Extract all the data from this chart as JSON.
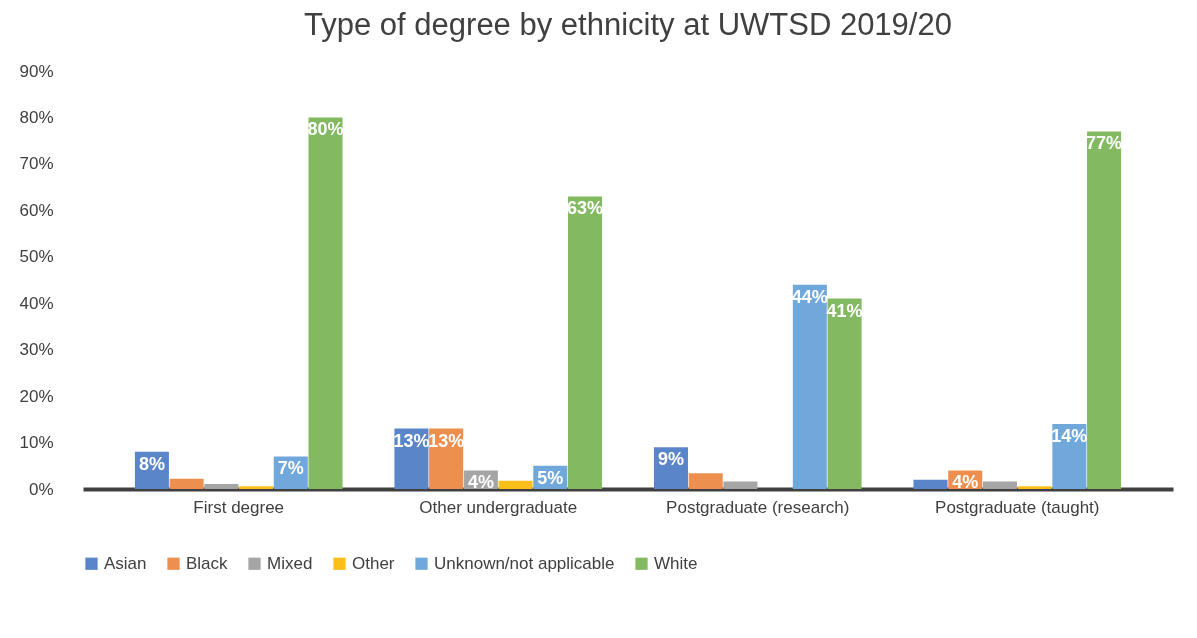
{
  "chart_data": {
    "type": "bar",
    "title": "Type of degree by ethnicity at UWTSD 2019/20",
    "categories": [
      "First degree",
      "Other undergraduate",
      "Postgraduate (research)",
      "Postgraduate (taught)"
    ],
    "series": [
      {
        "name": "Asian",
        "color": "#5b85c9",
        "values": [
          8,
          13,
          9,
          2.0
        ],
        "value_labels": [
          "8%",
          "13%",
          "9%",
          null
        ]
      },
      {
        "name": "Black",
        "color": "#ed8f4f",
        "values": [
          2.2,
          13,
          3.4,
          4
        ],
        "value_labels": [
          null,
          "13%",
          null,
          "4%"
        ]
      },
      {
        "name": "Mixed",
        "color": "#a5a5a5",
        "values": [
          1.1,
          4,
          1.6,
          1.6
        ],
        "value_labels": [
          null,
          "4%",
          null,
          null
        ]
      },
      {
        "name": "Other",
        "color": "#fbbf1c",
        "values": [
          0.6,
          1.8,
          0,
          0.6
        ],
        "value_labels": [
          null,
          null,
          null,
          null
        ]
      },
      {
        "name": "Unknown/not applicable",
        "color": "#71a8db",
        "values": [
          7,
          5,
          44,
          14
        ],
        "value_labels": [
          "7%",
          "5%",
          "44%",
          "14%"
        ]
      },
      {
        "name": "White",
        "color": "#83b961",
        "values": [
          80,
          63,
          41,
          77
        ],
        "value_labels": [
          "80%",
          "63%",
          "41%",
          "77%"
        ]
      }
    ],
    "ylim": [
      0,
      90
    ],
    "yticks": [
      {
        "value": 0,
        "label": "0%"
      },
      {
        "value": 10,
        "label": "10%"
      },
      {
        "value": 20,
        "label": "20%"
      },
      {
        "value": 30,
        "label": "30%"
      },
      {
        "value": 40,
        "label": "40%"
      },
      {
        "value": 50,
        "label": "50%"
      },
      {
        "value": 60,
        "label": "60%"
      },
      {
        "value": 70,
        "label": "70%"
      },
      {
        "value": 80,
        "label": "80%"
      },
      {
        "value": 90,
        "label": "90%"
      }
    ],
    "grid": false,
    "legend": "bottom"
  }
}
